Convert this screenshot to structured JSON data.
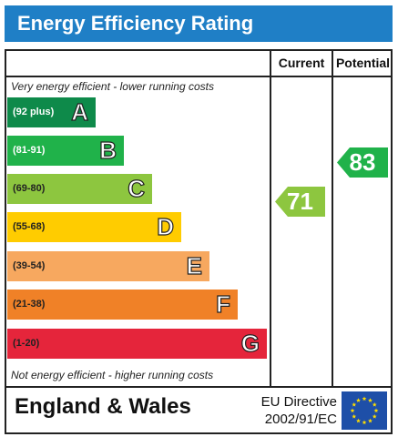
{
  "title": "Energy Efficiency Rating",
  "columns": {
    "current": "Current",
    "potential": "Potential"
  },
  "captions": {
    "top": "Very energy efficient - lower running costs",
    "bottom": "Not energy efficient - higher running costs"
  },
  "bands": [
    {
      "range": "(92 plus)",
      "letter": "A",
      "color": "#0e8a4a",
      "text_color": "#ffffff"
    },
    {
      "range": "(81-91)",
      "letter": "B",
      "color": "#20b24a",
      "text_color": "#ffffff"
    },
    {
      "range": "(69-80)",
      "letter": "C",
      "color": "#8dc63f",
      "text_color": "#222222"
    },
    {
      "range": "(55-68)",
      "letter": "D",
      "color": "#ffcc00",
      "text_color": "#222222"
    },
    {
      "range": "(39-54)",
      "letter": "E",
      "color": "#f7a85f",
      "text_color": "#222222"
    },
    {
      "range": "(21-38)",
      "letter": "F",
      "color": "#f08127",
      "text_color": "#222222"
    },
    {
      "range": "(1-20)",
      "letter": "G",
      "color": "#e5253b",
      "text_color": "#222222"
    }
  ],
  "current_rating": {
    "value": "71",
    "color": "#8dc63f"
  },
  "potential_rating": {
    "value": "83",
    "color": "#20b24a"
  },
  "footer": {
    "country": "England & Wales",
    "directive_line1": "EU Directive",
    "directive_line2": "2002/91/EC",
    "flag_color": "#1e4fa8",
    "star_color": "#ffdd00"
  }
}
